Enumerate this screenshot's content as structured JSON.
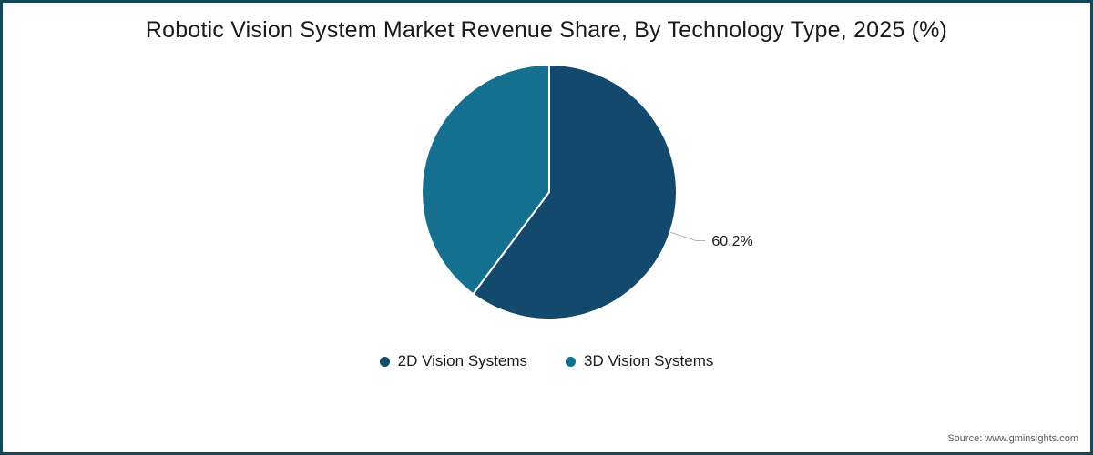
{
  "title": "Robotic Vision System Market Revenue Share, By Technology Type, 2025 (%)",
  "source": "Source: www.gminsights.com",
  "colors": {
    "border": "#16465a",
    "leader_line": "#b3b3b3",
    "text": "#1a1a1a",
    "source_text": "#595959",
    "background": "#ffffff"
  },
  "chart_data": {
    "type": "pie",
    "title": "Robotic Vision System Market Revenue Share, By Technology Type, 2025 (%)",
    "start_angle_deg": 0,
    "direction": "clockwise",
    "legend_position": "bottom",
    "slices": [
      {
        "label": "2D Vision Systems",
        "value": 60.2,
        "color": "#12496c",
        "data_label": "60.2%"
      },
      {
        "label": "3D Vision Systems",
        "value": 39.8,
        "color": "#15708f",
        "data_label": null
      }
    ]
  }
}
